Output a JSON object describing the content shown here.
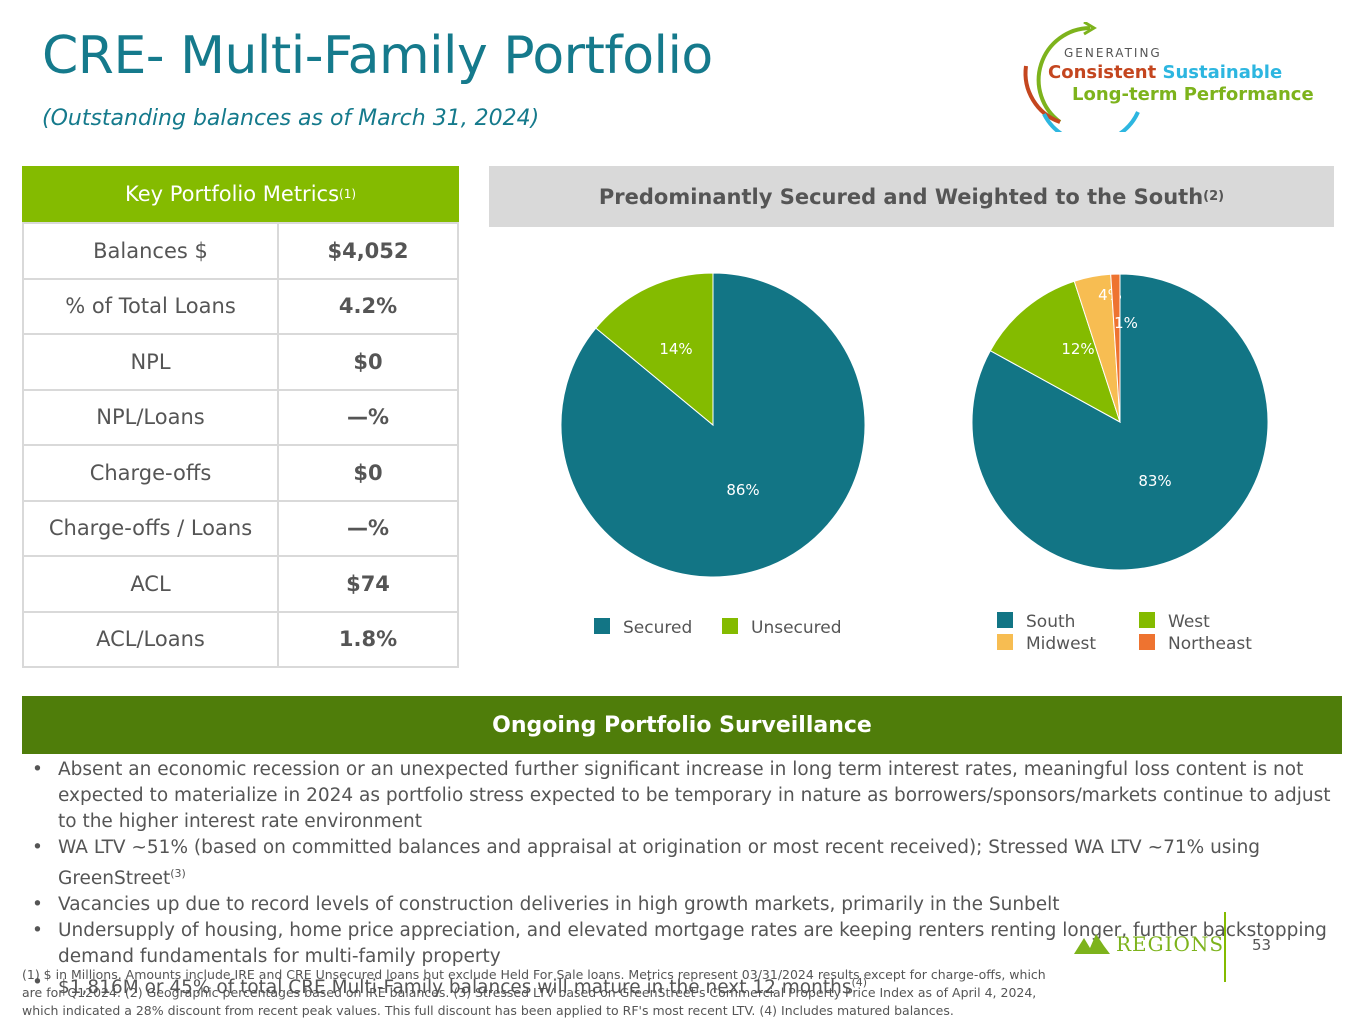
{
  "header": {
    "title": "CRE- Multi-Family Portfolio",
    "subtitle": "(Outstanding balances as of March 31, 2024)"
  },
  "brand": {
    "generating": "GENERATING",
    "consistent": "Consistent",
    "sustainable": "Sustainable",
    "longterm": "Long-term Performance",
    "colors": {
      "consistent": "#c4461f",
      "sustainable": "#2db6e0",
      "longterm": "#7db31c"
    }
  },
  "metrics": {
    "header": "Key Portfolio Metrics",
    "header_sup": "(1)",
    "rows": [
      {
        "label": "Balances $",
        "value": "$4,052"
      },
      {
        "label": "% of Total Loans",
        "value": "4.2%"
      },
      {
        "label": "NPL",
        "value": "$0"
      },
      {
        "label": "NPL/Loans",
        "value": "—%"
      },
      {
        "label": "Charge-offs",
        "value": "$0"
      },
      {
        "label": "Charge-offs / Loans",
        "value": "—%"
      },
      {
        "label": "ACL",
        "value": "$74"
      },
      {
        "label": "ACL/Loans",
        "value": "1.8%"
      }
    ]
  },
  "charts_header": {
    "title": "Predominantly Secured and Weighted to the South",
    "sup": "(2)"
  },
  "chart_data": [
    {
      "type": "pie",
      "title": "",
      "categories": [
        "Secured",
        "Unsecured"
      ],
      "values": [
        86,
        14
      ],
      "labels": [
        "86%",
        "14%"
      ],
      "colors": [
        "#127585",
        "#84bb00"
      ],
      "legend_position": "bottom"
    },
    {
      "type": "pie",
      "title": "",
      "categories": [
        "South",
        "West",
        "Midwest",
        "Northeast"
      ],
      "values": [
        83,
        12,
        4,
        1
      ],
      "labels": [
        "83%",
        "12%",
        "4%",
        "1%"
      ],
      "colors": [
        "#127585",
        "#84bb00",
        "#f7bd52",
        "#ee7330"
      ],
      "legend_position": "bottom"
    }
  ],
  "surveillance": {
    "header": "Ongoing Portfolio Surveillance",
    "bullets": [
      "Absent an economic recession or an unexpected further significant increase in long term interest rates, meaningful loss content is not expected to materialize in 2024 as portfolio stress expected to be temporary in nature as borrowers/sponsors/markets continue to adjust to the higher interest rate environment",
      "WA LTV ~51% (based on committed balances and appraisal at origination or most recent received); Stressed WA LTV ~71% using GreenStreet",
      "Vacancies up due to record levels of construction deliveries in high growth markets, primarily in the Sunbelt",
      "Undersupply of housing, home price appreciation, and elevated mortgage rates are keeping renters renting longer, further backstopping demand fundamentals for multi-family property",
      "$1,816M or 45% of total CRE Multi-Family balances will mature in the next 12 months"
    ],
    "bullet2_sup": "(3)",
    "bullet5_sup": "(4)"
  },
  "footnote": "(1) $ in Millions. Amounts include IRE and CRE Unsecured loans but exclude Held For Sale loans. Metrics represent 03/31/2024 results except for charge-offs, which are for Q12024. (2) Geographic percentages based on IRE balances.  (3) Stressed LTV based on GreenStreet's Commercial Property Price Index as of April 4, 2024, which indicated a 28% discount from recent peak values. This full discount has been applied to RF's most recent LTV. (4) Includes matured balances.",
  "logo": {
    "text": "REGIONS"
  },
  "page_number": "53"
}
